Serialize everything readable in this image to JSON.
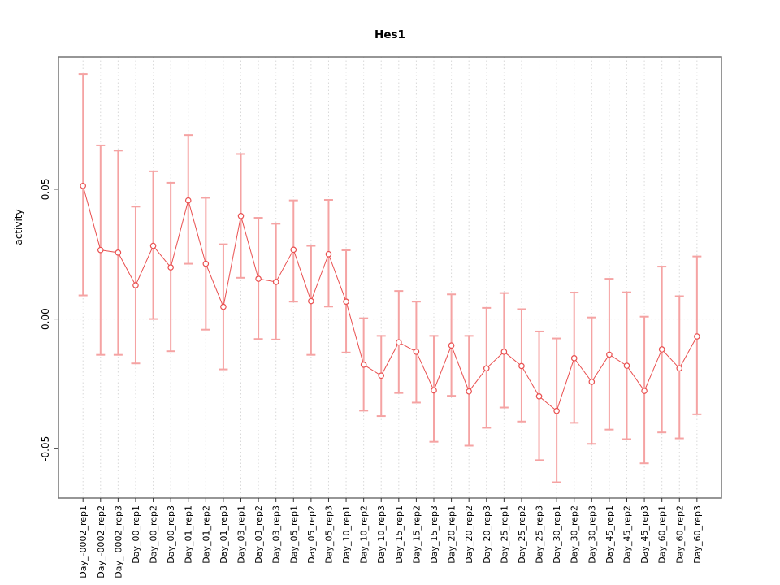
{
  "page": {
    "background": "#ffffff"
  },
  "chart_data": {
    "type": "line",
    "title": "Hes1",
    "xlabel": "",
    "ylabel": "activity",
    "legend": "none",
    "grid": "vertical dotted gridline at each category; horizontal dotted line at y=0",
    "ylim": [
      -0.069,
      0.101
    ],
    "yticks": [
      {
        "value": 0.05,
        "label": "0.05"
      },
      {
        "value": 0.0,
        "label": "0.00"
      },
      {
        "value": -0.05,
        "label": "-0.05"
      }
    ],
    "colors": {
      "series": "#e94f4f",
      "errorbar": "#f5a3a3",
      "gridline": "#d9d9d9",
      "zero_line": "#d9d9d9",
      "box_border": "#737373",
      "tick": "#333333"
    },
    "marker": "open-circle",
    "categories": [
      "Day_-0002_rep1",
      "Day_-0002_rep2",
      "Day_-0002_rep3",
      "Day_00_rep1",
      "Day_00_rep2",
      "Day_00_rep3",
      "Day_01_rep1",
      "Day_01_rep2",
      "Day_01_rep3",
      "Day_03_rep1",
      "Day_03_rep2",
      "Day_03_rep3",
      "Day_05_rep1",
      "Day_05_rep2",
      "Day_05_rep3",
      "Day_10_rep1",
      "Day_10_rep2",
      "Day_10_rep3",
      "Day_15_rep1",
      "Day_15_rep2",
      "Day_15_rep3",
      "Day_20_rep1",
      "Day_20_rep2",
      "Day_20_rep3",
      "Day_25_rep1",
      "Day_25_rep2",
      "Day_25_rep3",
      "Day_30_rep1",
      "Day_30_rep2",
      "Day_30_rep3",
      "Day_45_rep1",
      "Day_45_rep2",
      "Day_45_rep3",
      "Day_60_rep1",
      "Day_60_rep2",
      "Day_60_rep3"
    ],
    "values": [
      0.0513,
      0.0266,
      0.0256,
      0.013,
      0.0282,
      0.0199,
      0.0457,
      0.0213,
      0.0047,
      0.0397,
      0.0155,
      0.0143,
      0.0267,
      0.0069,
      0.025,
      0.0067,
      -0.0176,
      -0.0218,
      -0.009,
      -0.0126,
      -0.0275,
      -0.0102,
      -0.0279,
      -0.019,
      -0.0126,
      -0.0181,
      -0.0298,
      -0.0354,
      -0.0151,
      -0.0242,
      -0.0137,
      -0.018,
      -0.0277,
      -0.0117,
      -0.019,
      -0.0067
    ],
    "error_high": [
      0.0944,
      0.0669,
      0.0649,
      0.0433,
      0.0569,
      0.0525,
      0.0709,
      0.0467,
      0.0288,
      0.0636,
      0.039,
      0.0367,
      0.0457,
      0.0282,
      0.0459,
      0.0265,
      0.0003,
      -0.0065,
      0.0108,
      0.0067,
      -0.0065,
      0.0095,
      -0.0065,
      0.0043,
      0.01,
      0.0038,
      -0.0048,
      -0.0075,
      0.0102,
      0.0006,
      0.0155,
      0.0103,
      0.0009,
      0.0202,
      0.0088,
      0.0241
    ],
    "error_low": [
      0.0091,
      -0.0138,
      -0.0138,
      -0.0171,
      0.0,
      -0.0124,
      0.0213,
      -0.0041,
      -0.0194,
      0.0159,
      -0.0077,
      -0.0079,
      0.0067,
      -0.0138,
      0.0048,
      -0.0129,
      -0.0353,
      -0.0374,
      -0.0285,
      -0.0322,
      -0.0473,
      -0.0296,
      -0.0488,
      -0.0419,
      -0.0341,
      -0.0395,
      -0.0544,
      -0.0629,
      -0.04,
      -0.0481,
      -0.0426,
      -0.0463,
      -0.0556,
      -0.0437,
      -0.046,
      -0.0367
    ]
  }
}
